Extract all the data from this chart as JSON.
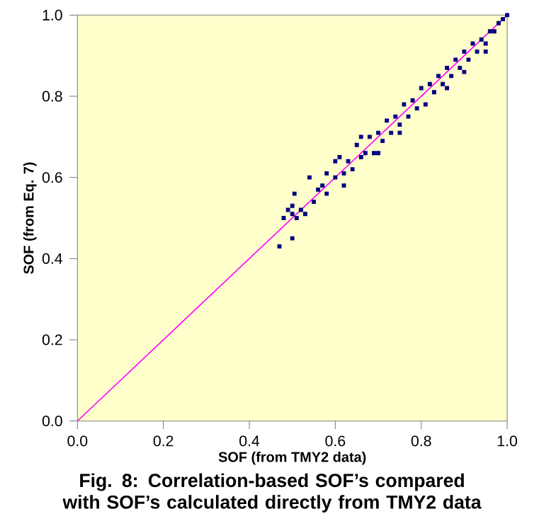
{
  "chart_data": {
    "type": "scatter",
    "title": "Fig. 8:  Correlation-based SOF’s compared with SOF’s calculated directly from TMY2 data",
    "xlabel": "SOF (from TMY2 data)",
    "ylabel": "SOF (from Eq. 7)",
    "xlim": [
      0,
      1
    ],
    "ylim": [
      0,
      1
    ],
    "xticks": [
      {
        "value": 0,
        "label": "0.0"
      },
      {
        "value": 0.2,
        "label": "0.2"
      },
      {
        "value": 0.4,
        "label": "0.4"
      },
      {
        "value": 0.6,
        "label": "0.6"
      },
      {
        "value": 0.8,
        "label": "0.8"
      },
      {
        "value": 1,
        "label": "1.0"
      }
    ],
    "yticks": [
      {
        "value": 0,
        "label": "0.0"
      },
      {
        "value": 0.2,
        "label": "0.2"
      },
      {
        "value": 0.4,
        "label": "0.4"
      },
      {
        "value": 0.6,
        "label": "0.6"
      },
      {
        "value": 0.8,
        "label": "0.8"
      },
      {
        "value": 1,
        "label": "1.0"
      }
    ],
    "series": [
      {
        "marker": "square",
        "color": "#000080",
        "x": [
          0.47,
          0.5,
          0.48,
          0.49,
          0.5,
          0.51,
          0.52,
          0.5,
          0.53,
          0.505,
          0.54,
          0.55,
          0.56,
          0.57,
          0.58,
          0.58,
          0.6,
          0.61,
          0.62,
          0.63,
          0.64,
          0.65,
          0.66,
          0.67,
          0.68,
          0.69,
          0.7,
          0.71,
          0.72,
          0.73,
          0.74,
          0.75,
          0.76,
          0.77,
          0.78,
          0.79,
          0.8,
          0.81,
          0.82,
          0.83,
          0.84,
          0.85,
          0.86,
          0.87,
          0.88,
          0.89,
          0.9,
          0.91,
          0.92,
          0.93,
          0.94,
          0.95,
          0.96,
          0.97,
          0.98,
          0.99,
          1.0,
          0.7,
          0.75,
          0.86,
          0.9,
          0.95,
          0.62,
          0.6,
          0.66
        ],
        "values": [
          0.43,
          0.45,
          0.5,
          0.52,
          0.51,
          0.5,
          0.52,
          0.53,
          0.51,
          0.56,
          0.6,
          0.54,
          0.57,
          0.58,
          0.56,
          0.61,
          0.6,
          0.65,
          0.61,
          0.64,
          0.62,
          0.68,
          0.65,
          0.66,
          0.7,
          0.66,
          0.71,
          0.69,
          0.74,
          0.71,
          0.75,
          0.73,
          0.78,
          0.75,
          0.79,
          0.77,
          0.82,
          0.78,
          0.83,
          0.81,
          0.85,
          0.83,
          0.87,
          0.85,
          0.89,
          0.87,
          0.91,
          0.89,
          0.93,
          0.91,
          0.94,
          0.93,
          0.96,
          0.96,
          0.98,
          0.99,
          1.0,
          0.66,
          0.71,
          0.82,
          0.86,
          0.91,
          0.58,
          0.64,
          0.7
        ]
      },
      {
        "type": "line",
        "color": "#ff00ff",
        "x": [
          0,
          1
        ],
        "values": [
          0,
          1
        ]
      }
    ]
  }
}
